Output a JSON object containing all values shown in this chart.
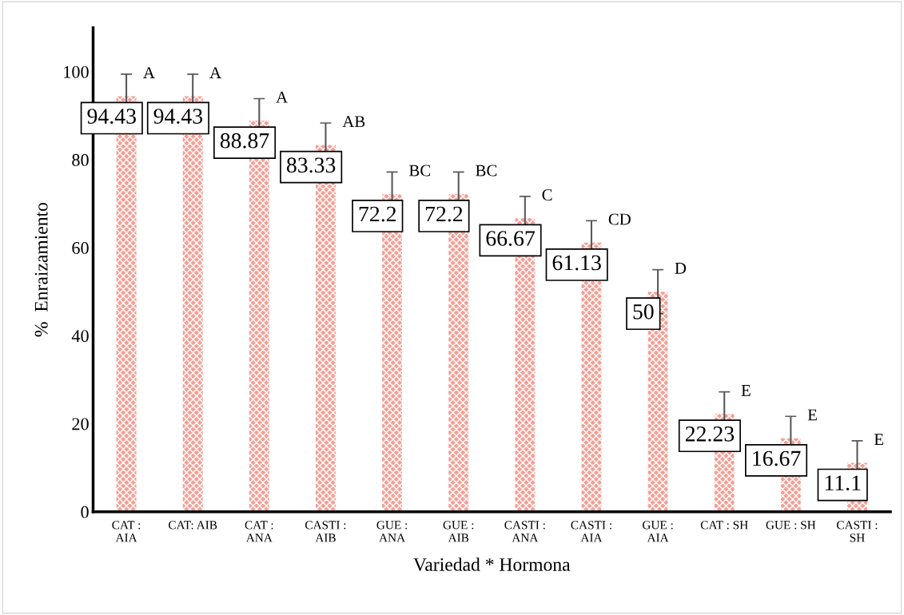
{
  "chart_data": {
    "type": "bar",
    "xlabel": "Variedad * Hormona",
    "ylabel": "%  Enraizamiento",
    "categories": [
      "CAT :\nAIA",
      "CAT: AIB",
      "CAT :\nANA",
      "CASTI :\nAIB",
      "GUE :\nANA",
      "GUE :\nAIB",
      "CASTI :\nANA",
      "CASTI :\nAIA",
      "GUE :\nAIA",
      "CAT : SH",
      "GUE : SH",
      "CASTI :\nSH"
    ],
    "values": [
      94.43,
      94.43,
      88.87,
      83.33,
      72.2,
      72.2,
      66.67,
      61.13,
      50,
      22.23,
      16.67,
      11.1
    ],
    "errors": [
      5,
      5,
      5,
      5,
      5,
      5,
      5,
      5,
      5,
      5,
      5,
      5
    ],
    "color": "#f4a096",
    "data_labels": true,
    "ylim": [
      0,
      110
    ],
    "yticks": [
      0,
      20,
      40,
      60,
      80,
      100
    ],
    "grid": false,
    "legend": false,
    "annotations": [
      {
        "text": "A",
        "x": "CAT :\nAIA",
        "y": 99.43
      },
      {
        "text": "A",
        "x": "CAT: AIB",
        "y": 99.43
      },
      {
        "text": "A",
        "x": "CAT :\nANA",
        "y": 93.87
      },
      {
        "text": "AB",
        "x": "CASTI :\nAIB",
        "y": 88.33
      },
      {
        "text": "BC",
        "x": "GUE :\nANA",
        "y": 77.2
      },
      {
        "text": "BC",
        "x": "GUE :\nAIB",
        "y": 77.2
      },
      {
        "text": "C",
        "x": "CASTI :\nANA",
        "y": 71.67
      },
      {
        "text": "CD",
        "x": "CASTI :\nAIA",
        "y": 66.13
      },
      {
        "text": "D",
        "x": "GUE :\nAIA",
        "y": 55
      },
      {
        "text": "E",
        "x": "CAT : SH",
        "y": 27.23
      },
      {
        "text": "E",
        "x": "GUE : SH",
        "y": 21.67
      },
      {
        "text": "E",
        "x": "CASTI :\nSH",
        "y": 16.1
      }
    ]
  }
}
